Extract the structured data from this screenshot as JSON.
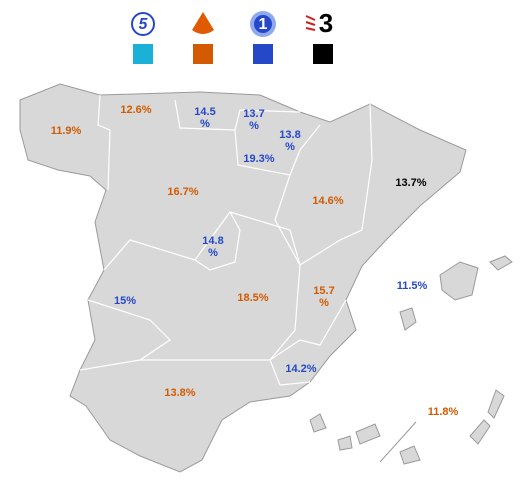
{
  "legend": [
    {
      "logo": "5",
      "color": "#1ab0d8"
    },
    {
      "logo": null,
      "color": "#d35a00"
    },
    {
      "logo": "1",
      "color": "#2448c8"
    },
    {
      "logo": "3",
      "color": "#000000"
    }
  ],
  "regions": [
    {
      "label": "11.9%",
      "channel": 1
    },
    {
      "label": "12.6%",
      "channel": 1
    },
    {
      "label": "14.5%",
      "channel": 2
    },
    {
      "label": "13.7%",
      "channel": 2
    },
    {
      "label": "13.8%",
      "channel": 2
    },
    {
      "label": "19.3%",
      "channel": 2
    },
    {
      "label": "16.7%",
      "channel": 1
    },
    {
      "label": "14.6%",
      "channel": 1
    },
    {
      "label": "13.7%",
      "channel": 3
    },
    {
      "label": "14.8%",
      "channel": 2
    },
    {
      "label": "15%",
      "channel": 2
    },
    {
      "label": "18.5%",
      "channel": 1
    },
    {
      "label": "15.7%",
      "channel": 1
    },
    {
      "label": "11.5%",
      "channel": 2
    },
    {
      "label": "14.2%",
      "channel": 2
    },
    {
      "label": "13.8%",
      "channel": 1
    },
    {
      "label": "11.8%",
      "channel": 1
    }
  ]
}
